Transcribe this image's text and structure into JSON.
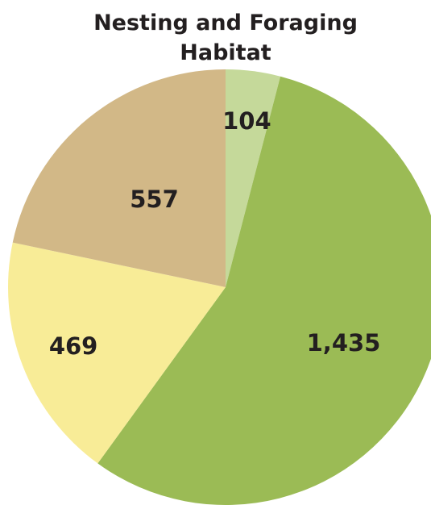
{
  "chart_data": {
    "type": "pie",
    "title_lines": [
      "Nesting and Foraging",
      "Habitat"
    ],
    "slices": [
      {
        "label": "104",
        "value": 104,
        "color": "#c5d99a"
      },
      {
        "label": "1,435",
        "value": 1435,
        "color": "#9bbb55"
      },
      {
        "label": "469",
        "value": 469,
        "color": "#f8ec97"
      },
      {
        "label": "557",
        "value": 557,
        "color": "#d2b887"
      }
    ],
    "start": "12 o'clock",
    "direction": "clockwise"
  }
}
